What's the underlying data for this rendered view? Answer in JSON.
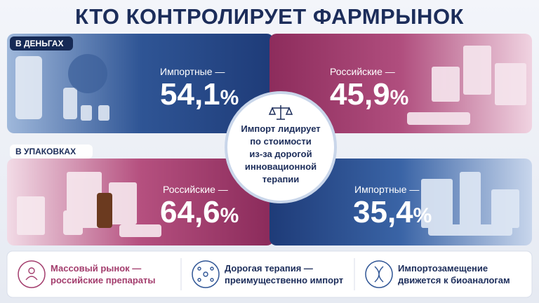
{
  "header": {
    "title": "КТО КОНТРОЛИРУЕТ ФАРМРЫНОК"
  },
  "money": {
    "tag": "В ДЕНЬГАХ",
    "left": {
      "label": "Импортные —",
      "value": "54,1",
      "unit": "%"
    },
    "right": {
      "label": "Российские —",
      "value": "45,9",
      "unit": "%"
    }
  },
  "center": {
    "lines": [
      "Импорт лидирует",
      "по стоимости",
      "из-за дорогой",
      "инновационной",
      "терапии"
    ]
  },
  "packages": {
    "tag": "В УПАКОВКАХ",
    "left": {
      "label": "Российские —",
      "value": "64,6",
      "unit": "%"
    },
    "right": {
      "label": "Импортные —",
      "value": "35,4",
      "unit": "%"
    }
  },
  "footer": [
    {
      "lines": [
        "Массовый рынок —",
        "российские препараты"
      ]
    },
    {
      "lines": [
        "Дорогая терапия —",
        "преимущественно импорт"
      ]
    },
    {
      "lines": [
        "Импортозамещение",
        "движется к биоаналогам"
      ]
    }
  ]
}
